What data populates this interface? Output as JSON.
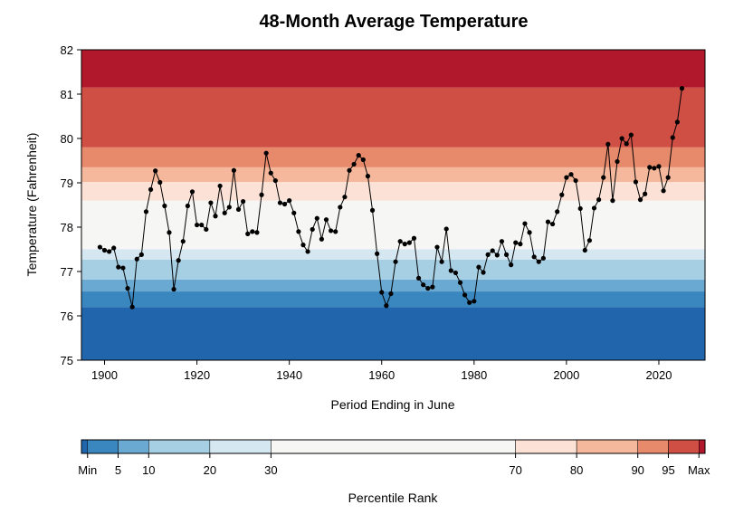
{
  "chart_data": {
    "type": "line",
    "title": "48-Month Average Temperature",
    "xlabel": "Period Ending in June",
    "ylabel": "Temperature (Fahrenheit)",
    "xlim": [
      1895,
      2030
    ],
    "ylim": [
      75,
      82
    ],
    "x_ticks": [
      1900,
      1920,
      1940,
      1960,
      1980,
      2000,
      2020
    ],
    "y_ticks": [
      75,
      76,
      77,
      78,
      79,
      80,
      81,
      82
    ],
    "background_bands": [
      {
        "low": 75.0,
        "high": 76.2,
        "color": "#2166ac"
      },
      {
        "low": 76.2,
        "high": 76.55,
        "color": "#3a87c0"
      },
      {
        "low": 76.55,
        "high": 76.82,
        "color": "#6aa9d2"
      },
      {
        "low": 76.82,
        "high": 77.27,
        "color": "#a7cfe4"
      },
      {
        "low": 77.27,
        "high": 77.5,
        "color": "#d5e7f1"
      },
      {
        "low": 77.5,
        "high": 78.6,
        "color": "#f6f6f5"
      },
      {
        "low": 78.6,
        "high": 79.02,
        "color": "#fce2d6"
      },
      {
        "low": 79.02,
        "high": 79.35,
        "color": "#f5b89c"
      },
      {
        "low": 79.35,
        "high": 79.8,
        "color": "#e78a6c"
      },
      {
        "low": 79.8,
        "high": 81.15,
        "color": "#cf4f45"
      },
      {
        "low": 81.15,
        "high": 82.0,
        "color": "#b2182b"
      }
    ],
    "series": [
      {
        "name": "48-month average temperature",
        "x": [
          1899,
          1900,
          1901,
          1902,
          1903,
          1904,
          1905,
          1906,
          1907,
          1908,
          1909,
          1910,
          1911,
          1912,
          1913,
          1914,
          1915,
          1916,
          1917,
          1918,
          1919,
          1920,
          1921,
          1922,
          1923,
          1924,
          1925,
          1926,
          1927,
          1928,
          1929,
          1930,
          1931,
          1932,
          1933,
          1934,
          1935,
          1936,
          1937,
          1938,
          1939,
          1940,
          1941,
          1942,
          1943,
          1944,
          1945,
          1946,
          1947,
          1948,
          1949,
          1950,
          1951,
          1952,
          1953,
          1954,
          1955,
          1956,
          1957,
          1958,
          1959,
          1960,
          1961,
          1962,
          1963,
          1964,
          1965,
          1966,
          1967,
          1968,
          1969,
          1970,
          1971,
          1972,
          1973,
          1974,
          1975,
          1976,
          1977,
          1978,
          1979,
          1980,
          1981,
          1982,
          1983,
          1984,
          1985,
          1986,
          1987,
          1988,
          1989,
          1990,
          1991,
          1992,
          1993,
          1994,
          1995,
          1996,
          1997,
          1998,
          1999,
          2000,
          2001,
          2002,
          2003,
          2004,
          2005,
          2006,
          2007,
          2008,
          2009,
          2010,
          2011,
          2012,
          2013,
          2014,
          2015,
          2016,
          2017,
          2018,
          2019,
          2020,
          2021,
          2022,
          2023,
          2024,
          2025
        ],
        "y": [
          77.55,
          77.48,
          77.45,
          77.53,
          77.1,
          77.08,
          76.62,
          76.2,
          77.28,
          77.38,
          78.35,
          78.85,
          79.27,
          79.01,
          78.48,
          77.88,
          76.6,
          77.25,
          77.68,
          78.48,
          78.8,
          78.05,
          78.05,
          77.95,
          78.55,
          78.25,
          78.93,
          78.32,
          78.45,
          79.28,
          78.4,
          78.58,
          77.85,
          77.9,
          77.88,
          78.73,
          79.67,
          79.22,
          79.05,
          78.55,
          78.52,
          78.6,
          78.32,
          77.9,
          77.6,
          77.45,
          77.95,
          78.2,
          77.73,
          78.17,
          77.92,
          77.9,
          78.45,
          78.68,
          79.28,
          79.42,
          79.62,
          79.52,
          79.15,
          78.38,
          77.4,
          76.53,
          76.23,
          76.5,
          77.22,
          77.68,
          77.62,
          77.65,
          77.75,
          76.85,
          76.7,
          76.62,
          76.65,
          77.55,
          77.22,
          77.96,
          77.02,
          76.97,
          76.75,
          76.47,
          76.3,
          76.33,
          77.1,
          76.98,
          77.38,
          77.47,
          77.37,
          77.68,
          77.38,
          77.15,
          77.65,
          77.62,
          78.08,
          77.88,
          77.33,
          77.22,
          77.3,
          78.12,
          78.07,
          78.35,
          78.73,
          79.12,
          79.19,
          79.05,
          78.42,
          77.48,
          77.7,
          78.43,
          78.62,
          79.12,
          79.87,
          78.6,
          79.48,
          80.0,
          79.88,
          80.08,
          79.02,
          78.62,
          78.75,
          79.35,
          79.33,
          79.37,
          78.82,
          79.12,
          80.02,
          80.37,
          81.13
        ]
      }
    ],
    "colorbar": {
      "label": "Percentile Rank",
      "tick_labels": [
        "Min",
        "5",
        "10",
        "20",
        "30",
        "70",
        "80",
        "90",
        "95",
        "Max"
      ],
      "colors": [
        "#2166ac",
        "#3a87c0",
        "#6aa9d2",
        "#a7cfe4",
        "#d5e7f1",
        "#f6f6f5",
        "#fce2d6",
        "#f5b89c",
        "#e78a6c",
        "#cf4f45",
        "#b2182b"
      ],
      "boundaries": [
        -1,
        0,
        5,
        10,
        20,
        30,
        70,
        80,
        90,
        95,
        100,
        101
      ]
    }
  }
}
